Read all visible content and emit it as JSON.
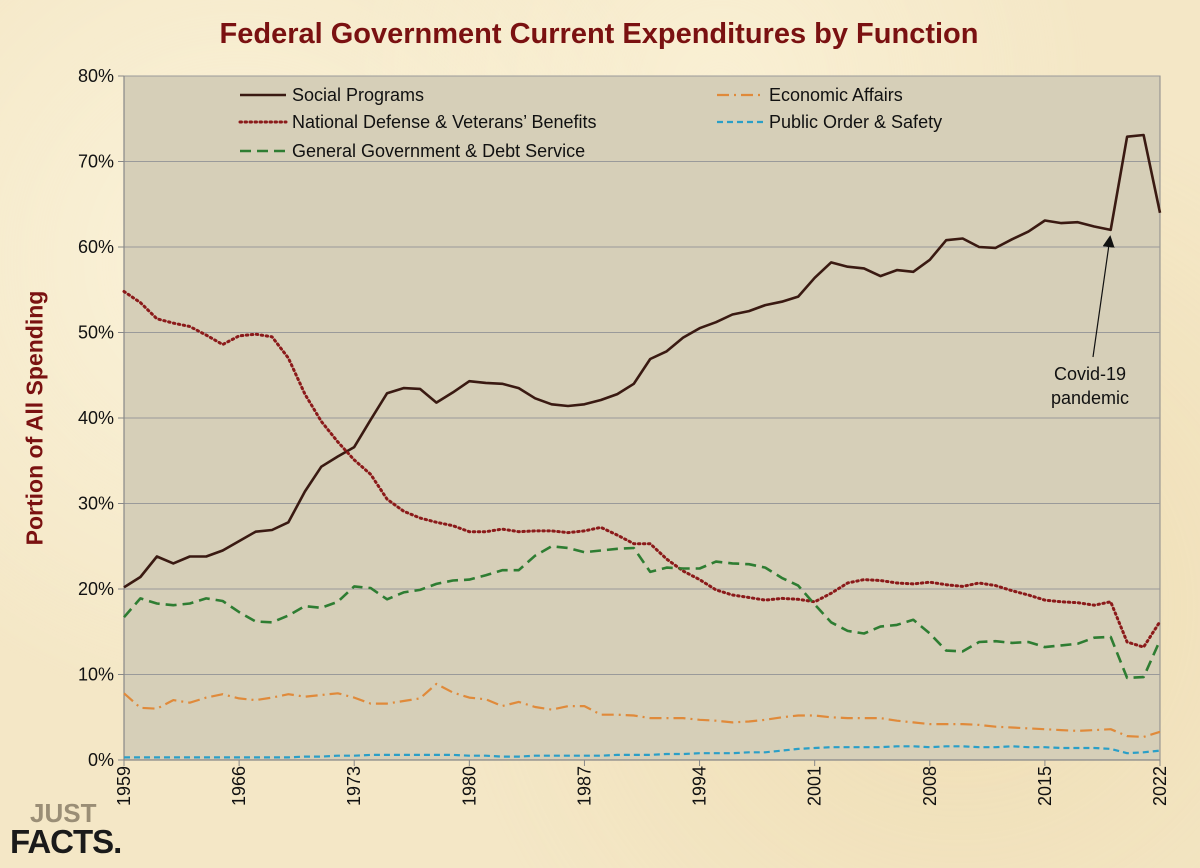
{
  "page": {
    "title": "Federal Government Current Expenditures by Function",
    "ylabel": "Portion of All Spending",
    "logo_top": "JUST",
    "logo_bottom": "FACTS."
  },
  "chart_data": {
    "type": "line",
    "title": "Federal Government Current Expenditures by Function",
    "xlabel": "",
    "ylabel": "Portion of All Spending",
    "xlim": [
      1959,
      2022
    ],
    "ylim": [
      0,
      80
    ],
    "x_ticks": [
      "1959",
      "1966",
      "1973",
      "1980",
      "1987",
      "1994",
      "2001",
      "2008",
      "2015",
      "2022"
    ],
    "y_ticks": [
      "0%",
      "10%",
      "20%",
      "30%",
      "40%",
      "50%",
      "60%",
      "70%",
      "80%"
    ],
    "grid": "horizontal",
    "legend": "top",
    "x": [
      1959,
      1960,
      1961,
      1962,
      1963,
      1964,
      1965,
      1966,
      1967,
      1968,
      1969,
      1970,
      1971,
      1972,
      1973,
      1974,
      1975,
      1976,
      1977,
      1978,
      1979,
      1980,
      1981,
      1982,
      1983,
      1984,
      1985,
      1986,
      1987,
      1988,
      1989,
      1990,
      1991,
      1992,
      1993,
      1994,
      1995,
      1996,
      1997,
      1998,
      1999,
      2000,
      2001,
      2002,
      2003,
      2004,
      2005,
      2006,
      2007,
      2008,
      2009,
      2010,
      2011,
      2012,
      2013,
      2014,
      2015,
      2016,
      2017,
      2018,
      2019,
      2020,
      2021,
      2022
    ],
    "series": [
      {
        "name": "Social Programs",
        "color": "#3a1a12",
        "dash": "solid",
        "values": [
          20.2,
          21.4,
          23.8,
          23.0,
          23.8,
          23.8,
          24.5,
          25.6,
          26.7,
          26.9,
          27.8,
          31.4,
          34.3,
          35.5,
          36.6,
          39.8,
          42.9,
          43.5,
          43.4,
          41.8,
          43.0,
          44.3,
          44.1,
          44.0,
          43.5,
          42.3,
          41.6,
          41.4,
          41.6,
          42.1,
          42.8,
          44.0,
          46.9,
          47.8,
          49.4,
          50.5,
          51.2,
          52.1,
          52.5,
          53.2,
          53.6,
          54.2,
          56.4,
          58.2,
          57.7,
          57.5,
          56.6,
          57.3,
          57.1,
          58.5,
          60.8,
          61.0,
          60.0,
          59.9,
          60.9,
          61.8,
          63.1,
          62.8,
          62.9,
          62.4,
          62.0,
          72.9,
          73.1,
          64.0
        ]
      },
      {
        "name": "National Defense & Veterans’ Benefits",
        "color": "#8b1a1a",
        "dash": "dotted",
        "values": [
          54.8,
          53.5,
          51.6,
          51.1,
          50.7,
          49.7,
          48.6,
          49.6,
          49.8,
          49.5,
          47.0,
          42.8,
          39.6,
          37.2,
          35.1,
          33.4,
          30.5,
          29.1,
          28.3,
          27.8,
          27.4,
          26.7,
          26.7,
          27.0,
          26.7,
          26.8,
          26.8,
          26.6,
          26.8,
          27.2,
          26.3,
          25.3,
          25.3,
          23.5,
          22.1,
          21.1,
          19.9,
          19.3,
          19.0,
          18.7,
          18.9,
          18.8,
          18.5,
          19.5,
          20.7,
          21.1,
          21.0,
          20.7,
          20.6,
          20.8,
          20.5,
          20.3,
          20.7,
          20.4,
          19.8,
          19.3,
          18.7,
          18.5,
          18.4,
          18.1,
          18.5,
          13.8,
          13.2,
          16.2
        ]
      },
      {
        "name": "General Government & Debt Service",
        "color": "#2e7d32",
        "dash": "dashed",
        "values": [
          16.7,
          18.9,
          18.3,
          18.1,
          18.3,
          18.9,
          18.6,
          17.3,
          16.2,
          16.1,
          16.9,
          18.0,
          17.8,
          18.5,
          20.3,
          20.1,
          18.8,
          19.6,
          19.9,
          20.6,
          21.0,
          21.1,
          21.6,
          22.2,
          22.2,
          23.9,
          25.0,
          24.8,
          24.3,
          24.5,
          24.7,
          24.8,
          22.0,
          22.5,
          22.4,
          22.4,
          23.2,
          23.0,
          22.9,
          22.5,
          21.3,
          20.4,
          18.2,
          16.1,
          15.1,
          14.8,
          15.6,
          15.8,
          16.4,
          14.8,
          12.8,
          12.7,
          13.8,
          13.9,
          13.7,
          13.8,
          13.2,
          13.4,
          13.6,
          14.3,
          14.4,
          9.6,
          9.7,
          14.0
        ]
      },
      {
        "name": "Economic Affairs",
        "color": "#e08a3a",
        "dash": "dashdot",
        "values": [
          7.8,
          6.1,
          6.0,
          7.0,
          6.7,
          7.3,
          7.7,
          7.2,
          7.0,
          7.3,
          7.7,
          7.4,
          7.6,
          7.8,
          7.3,
          6.6,
          6.6,
          6.9,
          7.2,
          8.9,
          7.9,
          7.3,
          7.1,
          6.3,
          6.8,
          6.2,
          5.9,
          6.3,
          6.3,
          5.3,
          5.3,
          5.2,
          4.9,
          4.9,
          4.9,
          4.7,
          4.6,
          4.4,
          4.5,
          4.7,
          5.0,
          5.2,
          5.2,
          5.0,
          4.9,
          4.9,
          4.9,
          4.6,
          4.4,
          4.2,
          4.2,
          4.2,
          4.1,
          3.9,
          3.8,
          3.7,
          3.6,
          3.5,
          3.4,
          3.5,
          3.6,
          2.8,
          2.7,
          3.3
        ]
      },
      {
        "name": "Public Order & Safety",
        "color": "#2a9fc7",
        "dash": "dashed-short",
        "values": [
          0.3,
          0.3,
          0.3,
          0.3,
          0.3,
          0.3,
          0.3,
          0.3,
          0.3,
          0.3,
          0.3,
          0.4,
          0.4,
          0.5,
          0.5,
          0.6,
          0.6,
          0.6,
          0.6,
          0.6,
          0.6,
          0.5,
          0.5,
          0.4,
          0.4,
          0.5,
          0.5,
          0.5,
          0.5,
          0.5,
          0.6,
          0.6,
          0.6,
          0.7,
          0.7,
          0.8,
          0.8,
          0.8,
          0.9,
          0.9,
          1.1,
          1.3,
          1.4,
          1.5,
          1.5,
          1.5,
          1.5,
          1.6,
          1.6,
          1.5,
          1.6,
          1.6,
          1.5,
          1.5,
          1.6,
          1.5,
          1.5,
          1.4,
          1.4,
          1.4,
          1.3,
          0.8,
          0.9,
          1.1
        ]
      }
    ],
    "annotations": [
      {
        "text_lines": [
          "Covid-19",
          "pandemic"
        ],
        "x": 2019,
        "y": 62
      }
    ]
  }
}
